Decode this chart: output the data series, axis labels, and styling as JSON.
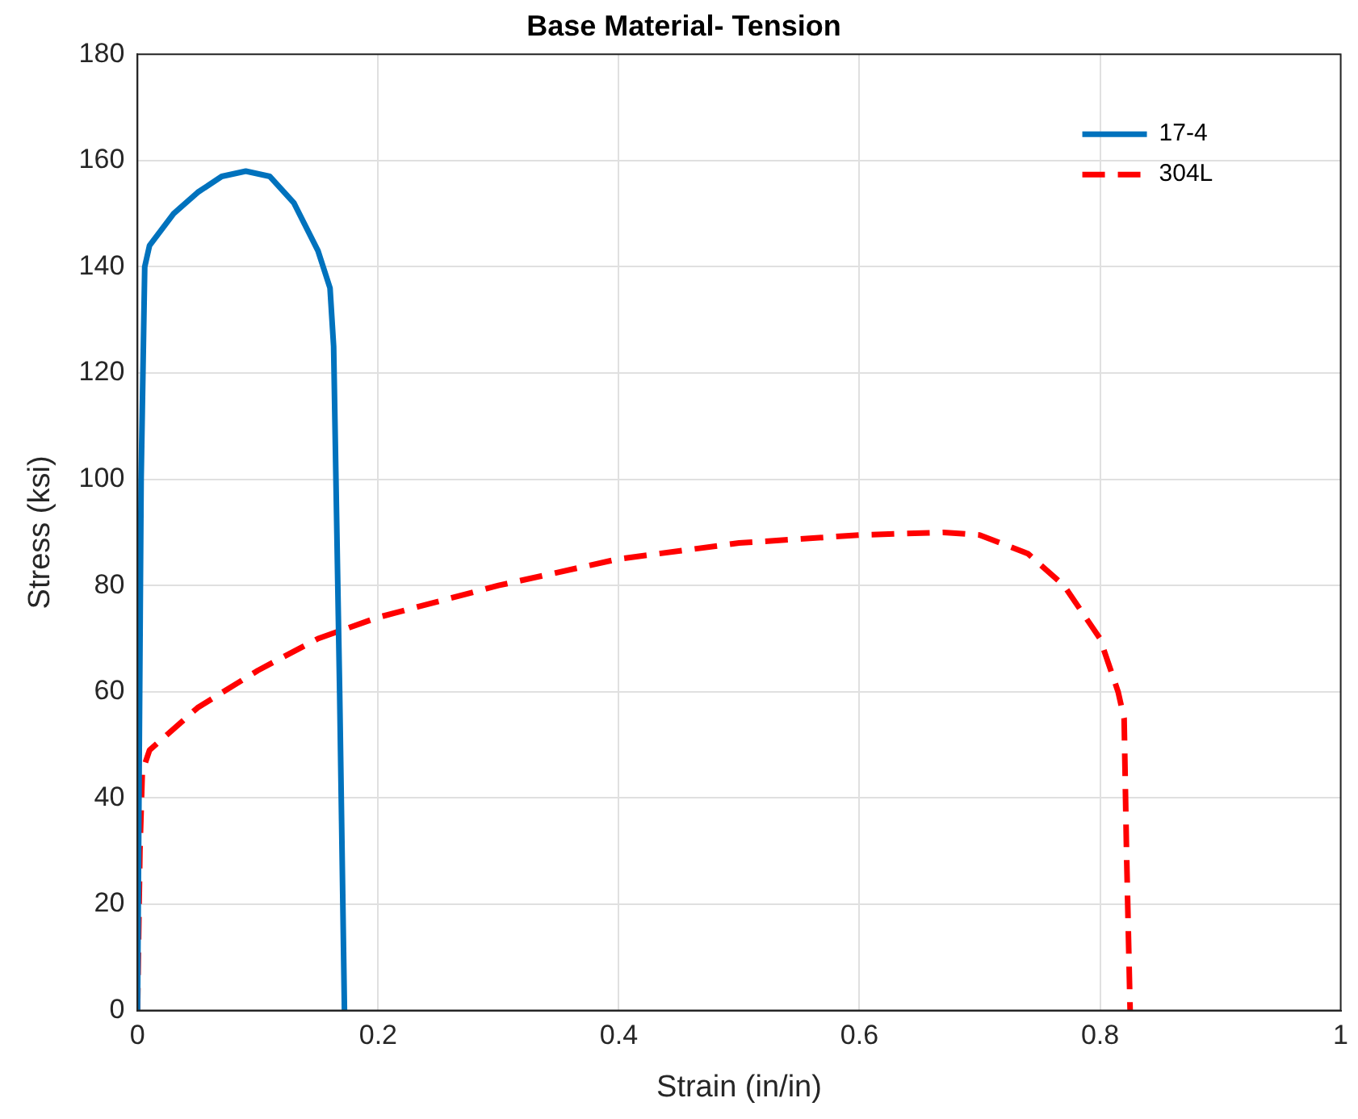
{
  "chart_data": {
    "type": "line",
    "title": "Base Material- Tension",
    "xlabel": "Strain (in/in)",
    "ylabel": "Stress (ksi)",
    "xlim": [
      0,
      1
    ],
    "xticks": [
      0,
      0.2,
      0.4,
      0.6,
      0.8,
      1
    ],
    "ylim": [
      0,
      180
    ],
    "yticks": [
      0,
      20,
      40,
      60,
      80,
      100,
      120,
      140,
      160,
      180
    ],
    "grid": true,
    "legend": "top right",
    "marker": "none",
    "series": [
      {
        "name": "17-4",
        "color": "#0072bd",
        "line_style": "solid",
        "x": [
          0,
          0.003,
          0.006,
          0.01,
          0.03,
          0.05,
          0.07,
          0.09,
          0.11,
          0.13,
          0.15,
          0.16,
          0.163,
          0.168,
          0.172
        ],
        "values": [
          0,
          100,
          140,
          144,
          150,
          154,
          157,
          158,
          157,
          152,
          143,
          136,
          125,
          60,
          0
        ]
      },
      {
        "name": "304L",
        "color": "#ff0000",
        "line_style": "dashed",
        "x": [
          0,
          0.002,
          0.004,
          0.01,
          0.03,
          0.05,
          0.1,
          0.15,
          0.2,
          0.3,
          0.4,
          0.5,
          0.6,
          0.67,
          0.7,
          0.74,
          0.77,
          0.8,
          0.815,
          0.82,
          0.822,
          0.825
        ],
        "values": [
          0,
          30,
          45,
          49,
          53,
          57,
          64,
          70,
          74,
          80,
          85,
          88,
          89.5,
          90,
          89.5,
          86,
          80,
          70,
          60,
          55,
          30,
          0
        ]
      }
    ]
  }
}
